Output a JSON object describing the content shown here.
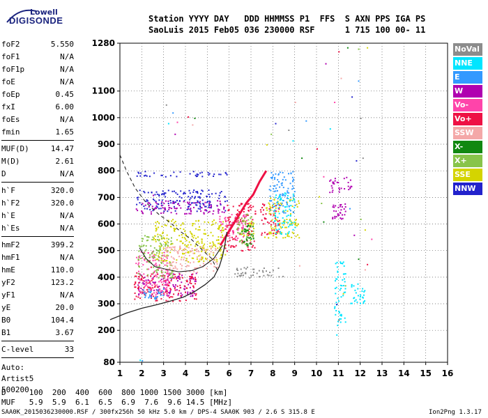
{
  "logo": {
    "brand_top": "Lowell",
    "brand_main": "DIGISONDE"
  },
  "header": {
    "line1": "Station YYYY DAY   DDD HHMMSS P1  FFS  S AXN PPS IGA PS",
    "line2": "SaoLuis 2015 Feb05 036 230000 RSF      1 715 100 00- 11"
  },
  "params": {
    "group1": [
      {
        "name": "foF2",
        "value": "5.550"
      },
      {
        "name": "foF1",
        "value": "N/A"
      },
      {
        "name": "foF1p",
        "value": "N/A"
      },
      {
        "name": "foE",
        "value": "N/A"
      },
      {
        "name": "foEp",
        "value": "0.45"
      },
      {
        "name": "fxI",
        "value": "6.00"
      },
      {
        "name": "foEs",
        "value": "N/A"
      },
      {
        "name": "fmin",
        "value": "1.65"
      }
    ],
    "group2": [
      {
        "name": "MUF(D)",
        "value": "14.47"
      },
      {
        "name": "M(D)",
        "value": "2.61"
      },
      {
        "name": "D",
        "value": "N/A"
      }
    ],
    "group3": [
      {
        "name": "h`F",
        "value": "320.0"
      },
      {
        "name": "h`F2",
        "value": "320.0"
      },
      {
        "name": "h`E",
        "value": "N/A"
      },
      {
        "name": "h`Es",
        "value": "N/A"
      }
    ],
    "group4": [
      {
        "name": "hmF2",
        "value": "399.2"
      },
      {
        "name": "hmF1",
        "value": "N/A"
      },
      {
        "name": "hmE",
        "value": "110.0"
      },
      {
        "name": "yF2",
        "value": "123.2"
      },
      {
        "name": "yF1",
        "value": "N/A"
      },
      {
        "name": "yE",
        "value": "20.0"
      },
      {
        "name": "B0",
        "value": "104.4"
      },
      {
        "name": "B1",
        "value": "3.67"
      }
    ],
    "group5": [
      {
        "name": "C-level",
        "value": "33"
      }
    ]
  },
  "auto": {
    "line1": "Auto:",
    "line2": "Artist5",
    "line3": "500200"
  },
  "legend": [
    {
      "label": "NoVal",
      "color": "#8c8c8c"
    },
    {
      "label": "NNE",
      "color": "#00e5ff"
    },
    {
      "label": "E",
      "color": "#3399ff"
    },
    {
      "label": "W",
      "color": "#b000b0"
    },
    {
      "label": "Vo-",
      "color": "#ff44aa"
    },
    {
      "label": "Vo+",
      "color": "#ee1144"
    },
    {
      "label": "SSW",
      "color": "#f4a8a8"
    },
    {
      "label": "X-",
      "color": "#118811"
    },
    {
      "label": "X+",
      "color": "#88c44a"
    },
    {
      "label": "SSE",
      "color": "#d4d400"
    },
    {
      "label": "NNW",
      "color": "#2222cc"
    }
  ],
  "footer": {
    "d_line": "D     100  200  400  600  800 1000 1500 3000 [km]",
    "muf_line": "MUF   5.9  5.9  6.1  6.5  6.9  7.6  9.6 14.5 [MHz]",
    "file_line": "SAA0K_2015036230000.RSF / 300fx256h 50 kHz 5.0 km / DPS-4 SAA0K 903 / 2.6 S 315.8 E",
    "version": "Ion2Png 1.3.17"
  },
  "chart_data": {
    "type": "scatter",
    "xlim": [
      1,
      16
    ],
    "ylim": [
      80,
      1280
    ],
    "x_ticks": [
      1,
      2,
      3,
      4,
      5,
      6,
      7,
      8,
      9,
      10,
      11,
      12,
      13,
      14,
      15,
      16
    ],
    "y_ticks": [
      80,
      200,
      300,
      400,
      500,
      600,
      700,
      800,
      900,
      1000,
      1100,
      1280
    ],
    "grid": true,
    "legend_position": "right",
    "profile_curve": [
      [
        0.55,
        240
      ],
      [
        1.3,
        265
      ],
      [
        2,
        283
      ],
      [
        2.7,
        297
      ],
      [
        3.3,
        310
      ],
      [
        3.9,
        325
      ],
      [
        4.4,
        345
      ],
      [
        4.9,
        372
      ],
      [
        5.3,
        400
      ],
      [
        5.55,
        440
      ],
      [
        5.7,
        480
      ],
      [
        5.8,
        520
      ],
      [
        5.9,
        570
      ]
    ],
    "profile_curve_upper": [
      [
        5.7,
        520
      ],
      [
        5.3,
        470
      ],
      [
        4.8,
        440
      ],
      [
        4.3,
        425
      ],
      [
        3.7,
        420
      ],
      [
        3.1,
        430
      ],
      [
        2.6,
        440
      ],
      [
        2.2,
        470
      ],
      [
        1.9,
        510
      ]
    ],
    "dashed_curve": [
      [
        1,
        860
      ],
      [
        1.3,
        800
      ],
      [
        1.7,
        735
      ],
      [
        2.2,
        680
      ],
      [
        2.8,
        635
      ],
      [
        3.3,
        605
      ],
      [
        3.8,
        570
      ],
      [
        4.3,
        540
      ],
      [
        4.8,
        500
      ],
      [
        5.2,
        470
      ],
      [
        5.5,
        420
      ]
    ],
    "red_trace": [
      [
        5.6,
        520
      ],
      [
        5.9,
        560
      ],
      [
        6.2,
        600
      ],
      [
        6.5,
        640
      ],
      [
        6.8,
        680
      ],
      [
        7.1,
        710
      ],
      [
        7.4,
        760
      ],
      [
        7.7,
        800
      ]
    ],
    "series": [
      {
        "name": "NNW",
        "color": "#2222cc",
        "regions": [
          [
            1.7,
            5.9,
            650,
            730
          ],
          [
            1.7,
            5.9,
            780,
            800
          ]
        ]
      },
      {
        "name": "W",
        "color": "#b000b0",
        "regions": [
          [
            1.7,
            5.9,
            640,
            690
          ],
          [
            1.8,
            4.5,
            330,
            420
          ],
          [
            10.5,
            11.6,
            720,
            780
          ],
          [
            10.7,
            11.3,
            620,
            680
          ]
        ]
      },
      {
        "name": "SSE",
        "color": "#d4d400",
        "regions": [
          [
            2.5,
            5.8,
            460,
            620
          ],
          [
            6.5,
            7.1,
            540,
            620
          ],
          [
            7.6,
            9.2,
            550,
            700
          ]
        ]
      },
      {
        "name": "Vo+",
        "color": "#ee1144",
        "regions": [
          [
            1.6,
            4.5,
            310,
            420
          ],
          [
            5.8,
            7.2,
            500,
            680
          ],
          [
            7.4,
            8.3,
            560,
            680
          ]
        ]
      },
      {
        "name": "Vo-",
        "color": "#ff44aa",
        "regions": [
          [
            1.7,
            3.2,
            330,
            500
          ],
          [
            5.5,
            6.8,
            540,
            640
          ]
        ]
      },
      {
        "name": "X+",
        "color": "#88c44a",
        "regions": [
          [
            1.8,
            3.4,
            400,
            560
          ],
          [
            6.3,
            7.1,
            520,
            640
          ]
        ]
      },
      {
        "name": "X-",
        "color": "#118811",
        "regions": [
          [
            6.5,
            7.1,
            520,
            600
          ]
        ]
      },
      {
        "name": "SSW",
        "color": "#f4a8a8",
        "regions": [
          [
            3.0,
            5.5,
            420,
            520
          ]
        ]
      },
      {
        "name": "NNE",
        "color": "#00e5ff",
        "regions": [
          [
            8.0,
            9.0,
            560,
            720
          ],
          [
            10.8,
            11.3,
            220,
            460
          ],
          [
            11.5,
            12.2,
            300,
            380
          ]
        ]
      },
      {
        "name": "E",
        "color": "#3399ff",
        "regions": [
          [
            7.8,
            9.0,
            640,
            800
          ],
          [
            2.0,
            3.0,
            320,
            360
          ]
        ]
      },
      {
        "name": "NoVal",
        "color": "#8c8c8c",
        "regions": [
          [
            6.2,
            8.5,
            400,
            440
          ]
        ]
      }
    ],
    "sparse_points": [
      {
        "x": 3.1,
        "y": 1050
      },
      {
        "x": 3.2,
        "y": 980
      },
      {
        "x": 3.4,
        "y": 1020
      },
      {
        "x": 3.5,
        "y": 940
      },
      {
        "x": 3.6,
        "y": 985
      },
      {
        "x": 4.1,
        "y": 1005
      },
      {
        "x": 4.3,
        "y": 975
      },
      {
        "x": 4.4,
        "y": 1000
      },
      {
        "x": 7.9,
        "y": 940
      },
      {
        "x": 7.7,
        "y": 900
      },
      {
        "x": 8.1,
        "y": 980
      },
      {
        "x": 8.7,
        "y": 955
      },
      {
        "x": 8.9,
        "y": 915
      },
      {
        "x": 9.5,
        "y": 990
      },
      {
        "x": 10.4,
        "y": 1205
      },
      {
        "x": 10.8,
        "y": 1060
      },
      {
        "x": 11.0,
        "y": 1250
      },
      {
        "x": 11.1,
        "y": 1150
      },
      {
        "x": 11.4,
        "y": 1265
      },
      {
        "x": 11.9,
        "y": 1260
      },
      {
        "x": 12.3,
        "y": 1265
      },
      {
        "x": 11.6,
        "y": 1080
      },
      {
        "x": 12.0,
        "y": 1000
      },
      {
        "x": 10.6,
        "y": 960
      },
      {
        "x": 11.9,
        "y": 1140
      },
      {
        "x": 11.7,
        "y": 560
      },
      {
        "x": 12.5,
        "y": 545
      },
      {
        "x": 12.3,
        "y": 450
      },
      {
        "x": 12.2,
        "y": 430
      },
      {
        "x": 11.9,
        "y": 470
      },
      {
        "x": 11.3,
        "y": 370
      },
      {
        "x": 11.2,
        "y": 340
      },
      {
        "x": 10.9,
        "y": 300
      },
      {
        "x": 11.0,
        "y": 240
      },
      {
        "x": 10.9,
        "y": 185
      },
      {
        "x": 11.5,
        "y": 660
      },
      {
        "x": 11.3,
        "y": 650
      },
      {
        "x": 10.3,
        "y": 780
      },
      {
        "x": 10.0,
        "y": 885
      },
      {
        "x": 9.2,
        "y": 445
      },
      {
        "x": 10.3,
        "y": 610
      },
      {
        "x": 10.2,
        "y": 680
      },
      {
        "x": 10.1,
        "y": 705
      },
      {
        "x": 11.8,
        "y": 840
      },
      {
        "x": 12.1,
        "y": 850
      },
      {
        "x": 1.9,
        "y": 90
      },
      {
        "x": 2.0,
        "y": 88
      },
      {
        "x": 2.5,
        "y": 710
      },
      {
        "x": 2.2,
        "y": 460
      },
      {
        "x": 2.4,
        "y": 440
      },
      {
        "x": 9.0,
        "y": 1060
      },
      {
        "x": 9.3,
        "y": 850
      },
      {
        "x": 12.0,
        "y": 620
      },
      {
        "x": 12.2,
        "y": 580
      }
    ]
  }
}
